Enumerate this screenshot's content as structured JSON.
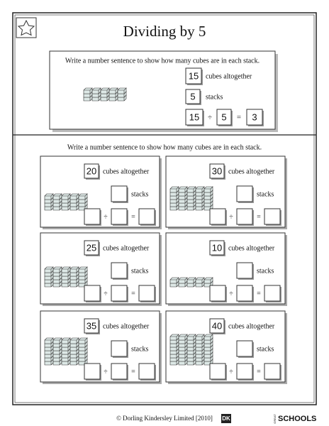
{
  "header": {
    "title": "Dividing by 5"
  },
  "example": {
    "instruction": "Write a number sentence to show how many cubes are in each stack.",
    "total": 15,
    "total_label": "cubes altogether",
    "stacks": 5,
    "stacks_label": "stacks",
    "equation": {
      "dividend": 15,
      "divide": "÷",
      "divisor": 5,
      "equals": "=",
      "quotient": 3
    }
  },
  "problems": {
    "instruction": "Write a number sentence to show how many cubes are in each stack.",
    "items": [
      {
        "total": 20,
        "total_label": "cubes altogether",
        "stacks_label": "stacks",
        "divide": "÷",
        "equals": "="
      },
      {
        "total": 30,
        "total_label": "cubes altogether",
        "stacks_label": "stacks",
        "divide": "÷",
        "equals": "="
      },
      {
        "total": 25,
        "total_label": "cubes altogether",
        "stacks_label": "stacks",
        "divide": "÷",
        "equals": "="
      },
      {
        "total": 10,
        "total_label": "cubes altogether",
        "stacks_label": "stacks",
        "divide": "÷",
        "equals": "="
      },
      {
        "total": 35,
        "total_label": "cubes altogether",
        "stacks_label": "stacks",
        "divide": "÷",
        "equals": "="
      },
      {
        "total": 40,
        "total_label": "cubes altogether",
        "stacks_label": "stacks",
        "divide": "÷",
        "equals": "="
      }
    ]
  },
  "footer": {
    "copyright": "© Dorling Kindersley Limited [2010]",
    "logo": "DK",
    "brand_small": "GREAT",
    "brand": "SCHOOLS"
  }
}
